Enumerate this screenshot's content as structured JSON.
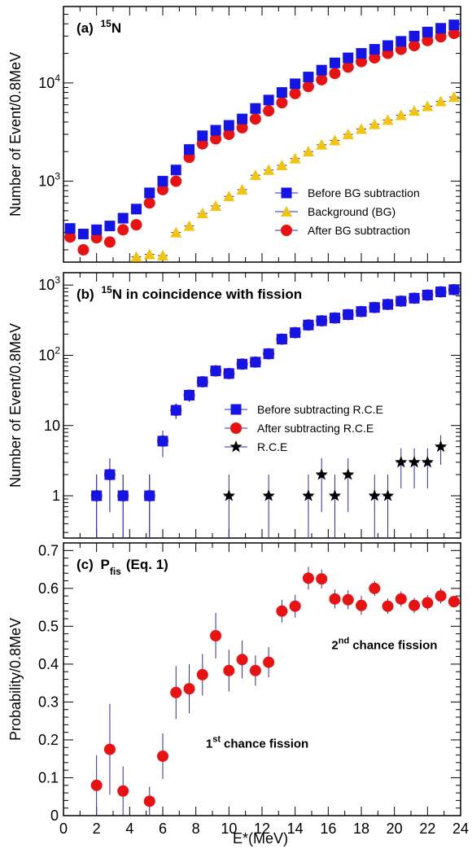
{
  "figure": {
    "xlabel": "E*(MeV)",
    "colors": {
      "blue": "#1414e6",
      "red": "#e81212",
      "yellow": "#f2c40e",
      "black": "#000000",
      "errbar": "#2a2ab4"
    }
  },
  "chart_data": [
    {
      "type": "scatter",
      "panel_label": "(a)",
      "title_prefix": "15",
      "title_main": "N",
      "ylabel": "Number of Event/0.8MeV",
      "yscale": "log",
      "ylim": [
        150,
        60000
      ],
      "xlim": [
        0,
        24
      ],
      "yticks": [
        1000,
        10000
      ],
      "ytick_labels": [
        {
          "base": "10",
          "exp": "3"
        },
        {
          "base": "10",
          "exp": "4"
        }
      ],
      "legend_position": "lower-right",
      "series": [
        {
          "name": "Before BG subtraction",
          "marker": "square",
          "color": "#1414e6",
          "x": [
            0.4,
            1.2,
            2.0,
            2.8,
            3.6,
            4.4,
            5.2,
            6.0,
            6.8,
            7.6,
            8.4,
            9.2,
            10.0,
            10.8,
            11.6,
            12.4,
            13.2,
            14.0,
            14.8,
            15.6,
            16.4,
            17.2,
            18.0,
            18.8,
            19.6,
            20.4,
            21.2,
            22.0,
            22.8,
            23.6
          ],
          "y": [
            330,
            290,
            320,
            350,
            420,
            520,
            760,
            1000,
            1300,
            2100,
            2900,
            3300,
            3700,
            4300,
            5500,
            6700,
            8000,
            9800,
            11500,
            13500,
            16000,
            18000,
            20000,
            22000,
            24000,
            26500,
            30000,
            33000,
            36000,
            39000
          ]
        },
        {
          "name": "Background (BG)",
          "marker": "triangle",
          "color": "#f2c40e",
          "x": [
            4.4,
            5.2,
            6.0,
            6.8,
            7.6,
            8.4,
            9.2,
            10.0,
            10.8,
            11.6,
            12.4,
            13.2,
            14.0,
            14.8,
            15.6,
            16.4,
            17.2,
            18.0,
            18.8,
            19.6,
            20.4,
            21.2,
            22.0,
            22.8,
            23.6
          ],
          "y": [
            170,
            180,
            175,
            300,
            350,
            470,
            560,
            700,
            820,
            1150,
            1300,
            1450,
            1700,
            2000,
            2350,
            2600,
            3000,
            3400,
            3800,
            4200,
            4700,
            5200,
            5800,
            6500,
            7200
          ]
        },
        {
          "name": "After BG subtraction",
          "marker": "circle",
          "color": "#e81212",
          "x": [
            0.4,
            1.2,
            2.0,
            2.8,
            3.6,
            4.4,
            5.2,
            6.0,
            6.8,
            7.6,
            8.4,
            9.2,
            10.0,
            10.8,
            11.6,
            12.4,
            13.2,
            14.0,
            14.8,
            15.6,
            16.4,
            17.2,
            18.0,
            18.8,
            19.6,
            20.4,
            21.2,
            22.0,
            22.8,
            23.6
          ],
          "y": [
            270,
            200,
            265,
            240,
            320,
            360,
            600,
            820,
            1000,
            1750,
            2400,
            2700,
            3000,
            3500,
            4300,
            5200,
            6300,
            7800,
            9200,
            10800,
            12500,
            14500,
            16500,
            18000,
            20000,
            22000,
            24000,
            27000,
            29500,
            32000
          ]
        }
      ]
    },
    {
      "type": "scatter",
      "panel_label": "(b)",
      "title_prefix": "15",
      "title_main": "N in coincidence with fission",
      "ylabel": "Number of Event/0.8MeV",
      "yscale": "log",
      "ylim": [
        0.25,
        1500
      ],
      "xlim": [
        0,
        24
      ],
      "yticks": [
        1,
        10,
        100,
        1000
      ],
      "ytick_labels": [
        {
          "base": "1",
          "exp": ""
        },
        {
          "base": "10",
          "exp": ""
        },
        {
          "base": "10",
          "exp": "2"
        },
        {
          "base": "10",
          "exp": "3"
        }
      ],
      "legend_position": "lower-left",
      "series": [
        {
          "name": "Before subtracting R.C.E",
          "marker": "square",
          "color": "#1414e6",
          "x": [
            2.0,
            2.8,
            3.6,
            5.2,
            6.0,
            6.8,
            7.6,
            8.4,
            9.2,
            10.0,
            10.8,
            11.6,
            12.4,
            13.2,
            14.0,
            14.8,
            15.6,
            16.4,
            17.2,
            18.0,
            18.8,
            19.6,
            20.4,
            21.2,
            22.0,
            22.8,
            23.6
          ],
          "y": [
            1,
            2,
            1,
            1,
            6,
            16.5,
            27,
            42,
            60,
            55,
            75,
            80,
            105,
            170,
            210,
            270,
            310,
            340,
            380,
            420,
            480,
            530,
            590,
            650,
            720,
            800,
            860
          ]
        },
        {
          "name": "After subtracting R.C.E",
          "marker": "circle",
          "color": "#e81212",
          "x": [
            2.0,
            2.8,
            3.6,
            5.2,
            6.0,
            6.8,
            7.6,
            8.4,
            9.2,
            10.0,
            10.8,
            11.6,
            12.4,
            13.2,
            14.0,
            14.8,
            15.6,
            16.4,
            17.2,
            18.0,
            18.8,
            19.6,
            20.4,
            21.2,
            22.0,
            22.8,
            23.6
          ],
          "y": [
            1,
            2,
            1,
            1,
            6,
            16.5,
            27,
            42,
            60,
            55,
            75,
            80,
            105,
            170,
            210,
            270,
            310,
            340,
            380,
            420,
            480,
            530,
            590,
            650,
            720,
            800,
            860
          ]
        },
        {
          "name": "R.C.E",
          "marker": "star",
          "color": "#000000",
          "x": [
            10.0,
            12.4,
            14.8,
            15.6,
            16.4,
            17.2,
            18.8,
            19.6,
            20.4,
            21.2,
            22.0,
            22.8
          ],
          "y": [
            1,
            1,
            1,
            2,
            1,
            2,
            1,
            1,
            3,
            3,
            3,
            5
          ]
        }
      ]
    },
    {
      "type": "scatter",
      "panel_label": "(c)",
      "title_main": "P",
      "title_sub": "fis",
      "title_suffix": "(Eq. 1)",
      "ylabel": "Probability/0.8MeV",
      "yscale": "linear",
      "ylim": [
        0,
        0.72
      ],
      "xlim": [
        0,
        24
      ],
      "yticks": [
        0,
        0.1,
        0.2,
        0.3,
        0.4,
        0.5,
        0.6,
        0.7
      ],
      "ytick_labels": [
        "0",
        "0.1",
        "0.2",
        "0.3",
        "0.4",
        "0.5",
        "0.6",
        "0.7"
      ],
      "xticks": [
        0,
        2,
        4,
        6,
        8,
        10,
        12,
        14,
        16,
        18,
        20,
        22,
        24
      ],
      "xtick_labels": [
        "0",
        "2",
        "4",
        "6",
        "8",
        "10",
        "12",
        "14",
        "16",
        "18",
        "20",
        "22",
        "24"
      ],
      "annotations": [
        {
          "num": "1",
          "sup": "st",
          "rest": "chance fission",
          "x": 8.6,
          "y": 0.18
        },
        {
          "num": "2",
          "sup": "nd",
          "rest": "chance fission",
          "x": 16.2,
          "y": 0.44
        }
      ],
      "series": [
        {
          "name": "",
          "marker": "circle",
          "color": "#e81212",
          "x": [
            2.0,
            2.8,
            3.6,
            5.2,
            6.0,
            6.8,
            7.6,
            8.4,
            9.2,
            10.0,
            10.8,
            11.6,
            12.4,
            13.2,
            14.0,
            14.8,
            15.6,
            16.4,
            17.2,
            18.0,
            18.8,
            19.6,
            20.4,
            21.2,
            22.0,
            22.8,
            23.6
          ],
          "y": [
            0.08,
            0.175,
            0.065,
            0.038,
            0.157,
            0.325,
            0.335,
            0.372,
            0.475,
            0.383,
            0.412,
            0.383,
            0.405,
            0.54,
            0.553,
            0.627,
            0.625,
            0.572,
            0.57,
            0.555,
            0.6,
            0.553,
            0.572,
            0.555,
            0.562,
            0.58,
            0.565
          ],
          "err": [
            0.08,
            0.12,
            0.065,
            0.038,
            0.06,
            0.07,
            0.065,
            0.055,
            0.06,
            0.055,
            0.05,
            0.04,
            0.04,
            0.03,
            0.03,
            0.03,
            0.025,
            0.025,
            0.025,
            0.025,
            0.02,
            0.02,
            0.02,
            0.02,
            0.02,
            0.02,
            0.015
          ]
        }
      ]
    }
  ]
}
